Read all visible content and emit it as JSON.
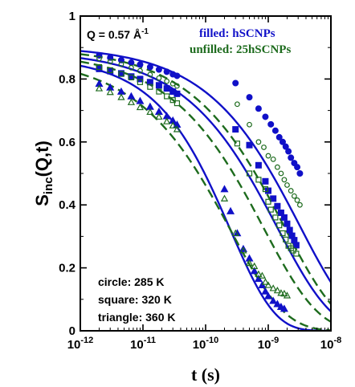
{
  "chart_data": {
    "type": "scatter",
    "title": "",
    "xlabel": "t (s)",
    "ylabel_main": "S",
    "ylabel_sub": "inc",
    "ylabel_rest": "(Q,t)",
    "xscale": "log",
    "xlim": [
      1e-12,
      1e-08
    ],
    "ylim": [
      0,
      1
    ],
    "x_ticks": [
      {
        "value": 1e-12,
        "base": "10",
        "exp": "-12"
      },
      {
        "value": 1e-11,
        "base": "10",
        "exp": "-11"
      },
      {
        "value": 1e-10,
        "base": "10",
        "exp": "-10"
      },
      {
        "value": 1e-09,
        "base": "10",
        "exp": "-9"
      },
      {
        "value": 1e-08,
        "base": "10",
        "exp": "-8"
      }
    ],
    "y_ticks": [
      {
        "value": 0,
        "label": "0"
      },
      {
        "value": 0.2,
        "label": "0.2"
      },
      {
        "value": 0.4,
        "label": "0.4"
      },
      {
        "value": 0.6,
        "label": "0.6"
      },
      {
        "value": 0.8,
        "label": "0.8"
      },
      {
        "value": 1,
        "label": "1"
      }
    ],
    "q_annotation": {
      "text": "Q = 0.57 Å",
      "sup": "-1"
    },
    "legend": [
      {
        "prefix": "filled: ",
        "name": "hSCNPs",
        "color": "#1010c8"
      },
      {
        "prefix": "unfilled: ",
        "name": "25hSCNPs",
        "color": "#1d6b1d"
      }
    ],
    "legend_position": "top-right",
    "temperature_notes": [
      "circle: 285 K",
      "square: 320 K",
      "triangle: 360 K"
    ],
    "colors": {
      "filled": "#1010c8",
      "unfilled": "#1d6b1d"
    },
    "series": [
      {
        "marker": "circle",
        "fill": "filled",
        "color": "#1010c8",
        "points": [
          [
            2e-12,
            0.875
          ],
          [
            3e-12,
            0.868
          ],
          [
            4.5e-12,
            0.86
          ],
          [
            6.5e-12,
            0.852
          ],
          [
            9e-12,
            0.846
          ],
          [
            1.3e-11,
            0.838
          ],
          [
            1.8e-11,
            0.83
          ],
          [
            2.4e-11,
            0.823
          ],
          [
            3e-11,
            0.815
          ],
          [
            3.5e-11,
            0.81
          ],
          [
            3e-10,
            0.787
          ],
          [
            5e-10,
            0.742
          ],
          [
            7e-10,
            0.706
          ],
          [
            9e-10,
            0.68
          ],
          [
            1.1e-09,
            0.656
          ],
          [
            1.3e-09,
            0.636
          ],
          [
            1.5e-09,
            0.615
          ],
          [
            1.7e-09,
            0.6
          ],
          [
            1.9e-09,
            0.585
          ],
          [
            2.1e-09,
            0.57
          ],
          [
            2.3e-09,
            0.55
          ],
          [
            2.6e-09,
            0.533
          ],
          [
            2.9e-09,
            0.52
          ],
          [
            3.2e-09,
            0.5
          ]
        ]
      },
      {
        "marker": "circle",
        "fill": "unfilled",
        "color": "#1d6b1d",
        "points": [
          [
            2e-12,
            0.865
          ],
          [
            3e-12,
            0.855
          ],
          [
            4.5e-12,
            0.847
          ],
          [
            6.5e-12,
            0.836
          ],
          [
            9e-12,
            0.826
          ],
          [
            1.3e-11,
            0.814
          ],
          [
            1.8e-11,
            0.803
          ],
          [
            2.4e-11,
            0.793
          ],
          [
            3e-11,
            0.785
          ],
          [
            3.5e-11,
            0.778
          ],
          [
            3.2e-10,
            0.72
          ],
          [
            5e-10,
            0.655
          ],
          [
            7e-10,
            0.6
          ],
          [
            8.5e-10,
            0.583
          ],
          [
            1e-09,
            0.556
          ],
          [
            1.2e-09,
            0.545
          ],
          [
            1.4e-09,
            0.52
          ],
          [
            1.6e-09,
            0.5
          ],
          [
            1.8e-09,
            0.48
          ],
          [
            2e-09,
            0.463
          ],
          [
            2.3e-09,
            0.445
          ],
          [
            2.6e-09,
            0.428
          ],
          [
            2.9e-09,
            0.415
          ],
          [
            3.2e-09,
            0.4
          ]
        ]
      },
      {
        "marker": "square",
        "fill": "filled",
        "color": "#1010c8",
        "points": [
          [
            2e-12,
            0.832
          ],
          [
            3e-12,
            0.825
          ],
          [
            4.5e-12,
            0.818
          ],
          [
            6.5e-12,
            0.808
          ],
          [
            9e-12,
            0.8
          ],
          [
            1.3e-11,
            0.79
          ],
          [
            1.8e-11,
            0.78
          ],
          [
            2.4e-11,
            0.77
          ],
          [
            3e-11,
            0.76
          ],
          [
            3.5e-11,
            0.753
          ],
          [
            3e-10,
            0.64
          ],
          [
            5e-10,
            0.59
          ],
          [
            7e-10,
            0.526
          ],
          [
            9e-10,
            0.475
          ],
          [
            1e-09,
            0.445
          ],
          [
            1.2e-09,
            0.42
          ],
          [
            1.4e-09,
            0.396
          ],
          [
            1.6e-09,
            0.375
          ],
          [
            1.8e-09,
            0.36
          ],
          [
            2e-09,
            0.34
          ],
          [
            2.2e-09,
            0.32
          ],
          [
            2.4e-09,
            0.302
          ],
          [
            2.6e-09,
            0.288
          ],
          [
            2.8e-09,
            0.272
          ]
        ]
      },
      {
        "marker": "square",
        "fill": "unfilled",
        "color": "#1d6b1d",
        "points": [
          [
            2e-12,
            0.838
          ],
          [
            3e-12,
            0.828
          ],
          [
            4.5e-12,
            0.816
          ],
          [
            6.5e-12,
            0.805
          ],
          [
            9e-12,
            0.79
          ],
          [
            1.3e-11,
            0.775
          ],
          [
            1.8e-11,
            0.76
          ],
          [
            2.4e-11,
            0.745
          ],
          [
            3e-11,
            0.733
          ],
          [
            3.5e-11,
            0.723
          ],
          [
            3.2e-10,
            0.595
          ],
          [
            5e-10,
            0.5
          ],
          [
            7e-10,
            0.48
          ],
          [
            9e-10,
            0.45
          ],
          [
            1e-09,
            0.41
          ],
          [
            1.1e-09,
            0.385
          ],
          [
            1.3e-09,
            0.36
          ],
          [
            1.5e-09,
            0.335
          ],
          [
            1.7e-09,
            0.31
          ],
          [
            1.9e-09,
            0.29
          ],
          [
            2.1e-09,
            0.27
          ],
          [
            2.3e-09,
            0.262
          ],
          [
            2.5e-09,
            0.255
          ],
          [
            2.8e-09,
            0.245
          ]
        ]
      },
      {
        "marker": "triangle",
        "fill": "filled",
        "color": "#1010c8",
        "points": [
          [
            2e-12,
            0.785
          ],
          [
            3e-12,
            0.773
          ],
          [
            4.5e-12,
            0.76
          ],
          [
            6.5e-12,
            0.745
          ],
          [
            9e-12,
            0.73
          ],
          [
            1.3e-11,
            0.712
          ],
          [
            1.8e-11,
            0.696
          ],
          [
            2.4e-11,
            0.682
          ],
          [
            3e-11,
            0.668
          ],
          [
            3.5e-11,
            0.655
          ],
          [
            2e-10,
            0.45
          ],
          [
            2.5e-10,
            0.38
          ],
          [
            3.2e-10,
            0.31
          ],
          [
            4e-10,
            0.26
          ],
          [
            5e-10,
            0.23
          ],
          [
            6e-10,
            0.19
          ],
          [
            7e-10,
            0.165
          ],
          [
            8e-10,
            0.145
          ],
          [
            9e-10,
            0.125
          ],
          [
            1e-09,
            0.11
          ],
          [
            1.2e-09,
            0.095
          ],
          [
            1.4e-09,
            0.085
          ],
          [
            1.6e-09,
            0.076
          ],
          [
            1.8e-09,
            0.07
          ]
        ]
      },
      {
        "marker": "triangle",
        "fill": "unfilled",
        "color": "#1d6b1d",
        "points": [
          [
            2e-12,
            0.77
          ],
          [
            3e-12,
            0.758
          ],
          [
            4.5e-12,
            0.742
          ],
          [
            6.5e-12,
            0.726
          ],
          [
            9e-12,
            0.71
          ],
          [
            1.3e-11,
            0.695
          ],
          [
            1.8e-11,
            0.68
          ],
          [
            2.4e-11,
            0.665
          ],
          [
            3e-11,
            0.652
          ],
          [
            3.5e-11,
            0.64
          ],
          [
            2e-10,
            0.42
          ],
          [
            3e-10,
            0.31
          ],
          [
            4e-10,
            0.255
          ],
          [
            5e-10,
            0.215
          ],
          [
            6e-10,
            0.205
          ],
          [
            7e-10,
            0.18
          ],
          [
            8e-10,
            0.175
          ],
          [
            9e-10,
            0.155
          ],
          [
            1e-09,
            0.145
          ],
          [
            1.2e-09,
            0.135
          ],
          [
            1.4e-09,
            0.128
          ],
          [
            1.6e-09,
            0.12
          ],
          [
            1.8e-09,
            0.118
          ],
          [
            2e-09,
            0.112
          ]
        ]
      }
    ],
    "fits": [
      {
        "style": "solid",
        "color": "#1010c8",
        "for": "circle",
        "a": 0.905,
        "tau": 3.2e-09,
        "beta": 0.5
      },
      {
        "style": "dashed",
        "color": "#1d6b1d",
        "for": "circle",
        "a": 0.9,
        "tau": 1.8e-09,
        "beta": 0.5
      },
      {
        "style": "solid",
        "color": "#1010c8",
        "for": "square",
        "a": 0.89,
        "tau": 1.4e-09,
        "beta": 0.5
      },
      {
        "style": "dashed",
        "color": "#1d6b1d",
        "for": "square",
        "a": 0.885,
        "tau": 8.5e-10,
        "beta": 0.5
      },
      {
        "style": "solid",
        "color": "#1010c8",
        "for": "triangle",
        "a": 0.87,
        "tau": 2.5e-10,
        "beta": 0.62
      },
      {
        "style": "dashed",
        "color": "#1d6b1d",
        "for": "triangle",
        "a": 0.87,
        "tau": 2.5e-10,
        "beta": 0.5
      }
    ]
  }
}
